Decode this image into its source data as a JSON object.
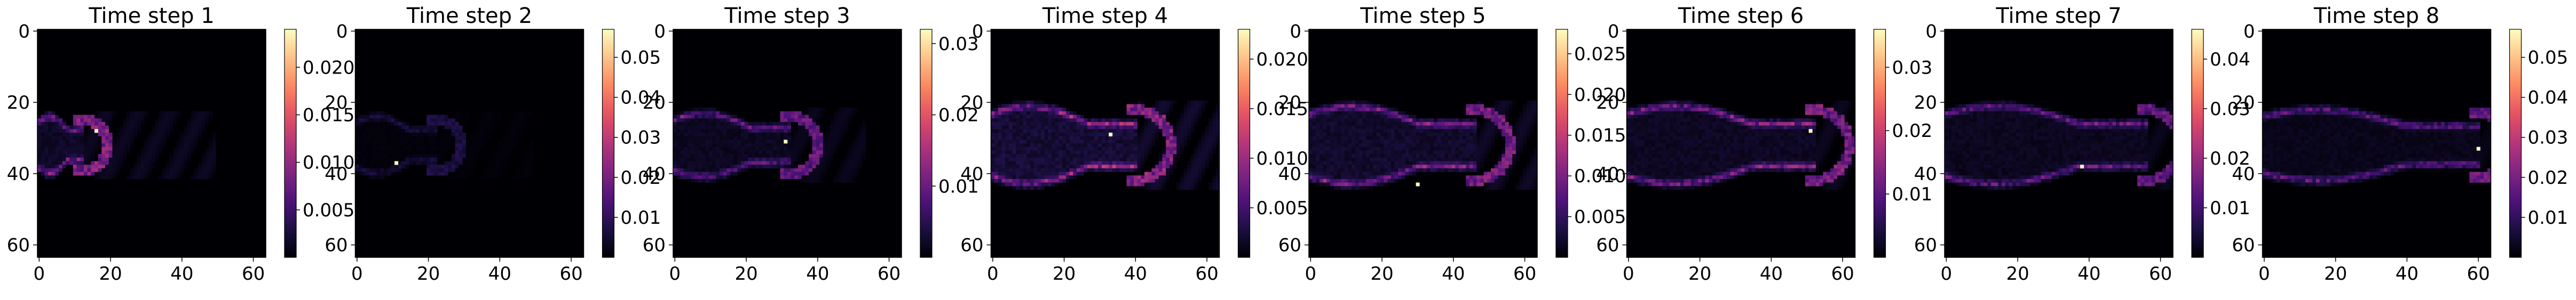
{
  "figure": {
    "background": "#ffffff",
    "colormap": "magma",
    "colormap_stops": [
      "#000004",
      "#1c1044",
      "#4f127b",
      "#812581",
      "#b5367a",
      "#e55064",
      "#fb8761",
      "#fec287",
      "#fcfdbf"
    ]
  },
  "chart_data": [
    {
      "type": "heatmap",
      "title": "Time step 1",
      "x_ticks": [
        0,
        20,
        40,
        60
      ],
      "y_ticks": [
        0,
        20,
        40,
        60
      ],
      "xlim": [
        0,
        64
      ],
      "ylim": [
        64,
        0
      ],
      "color_range": [
        0,
        0.024
      ],
      "colorbar_ticks": [
        {
          "v": 0.005,
          "label": "0.005"
        },
        {
          "v": 0.01,
          "label": "0.010"
        },
        {
          "v": 0.015,
          "label": "0.015"
        },
        {
          "v": 0.02,
          "label": "0.020"
        }
      ],
      "structure": {
        "front_x": 12,
        "tail_x": 38,
        "half_width": 8,
        "rim_value": 0.011,
        "wake_value": 0.0016,
        "peak": [
          16,
          28
        ],
        "peak_value": 0.024
      }
    },
    {
      "type": "heatmap",
      "title": "Time step 2",
      "x_ticks": [
        0,
        20,
        40,
        60
      ],
      "y_ticks": [
        0,
        20,
        40,
        60
      ],
      "xlim": [
        0,
        64
      ],
      "ylim": [
        64,
        0
      ],
      "color_range": [
        0,
        0.057
      ],
      "colorbar_ticks": [
        {
          "v": 0.01,
          "label": "0.01"
        },
        {
          "v": 0.02,
          "label": "0.02"
        },
        {
          "v": 0.03,
          "label": "0.03"
        },
        {
          "v": 0.04,
          "label": "0.04"
        },
        {
          "v": 0.05,
          "label": "0.05"
        }
      ],
      "structure": {
        "front_x": 22,
        "tail_x": 28,
        "half_width": 8,
        "rim_value": 0.009,
        "wake_value": 0.0008,
        "peak": [
          11,
          37
        ],
        "peak_value": 0.057
      }
    },
    {
      "type": "heatmap",
      "title": "Time step 3",
      "x_ticks": [
        0,
        20,
        40,
        60
      ],
      "y_ticks": [
        0,
        20,
        40,
        60
      ],
      "xlim": [
        0,
        64
      ],
      "ylim": [
        64,
        0
      ],
      "color_range": [
        0,
        0.032
      ],
      "colorbar_ticks": [
        {
          "v": 0.01,
          "label": "0.01"
        },
        {
          "v": 0.02,
          "label": "0.02"
        },
        {
          "v": 0.03,
          "label": "0.03"
        }
      ],
      "structure": {
        "front_x": 32,
        "tail_x": 22,
        "half_width": 9,
        "rim_value": 0.012,
        "wake_value": 0.0018,
        "peak": [
          31,
          31
        ],
        "peak_value": 0.032
      }
    },
    {
      "type": "heatmap",
      "title": "Time step 4",
      "x_ticks": [
        0,
        20,
        40,
        60
      ],
      "y_ticks": [
        0,
        20,
        40,
        60
      ],
      "xlim": [
        0,
        64
      ],
      "ylim": [
        64,
        0
      ],
      "color_range": [
        0,
        0.023
      ],
      "colorbar_ticks": [
        {
          "v": 0.005,
          "label": "0.005"
        },
        {
          "v": 0.01,
          "label": "0.010"
        },
        {
          "v": 0.015,
          "label": "0.015"
        },
        {
          "v": 0.02,
          "label": "0.020"
        }
      ],
      "structure": {
        "front_x": 40,
        "tail_x": 26,
        "half_width": 11,
        "rim_value": 0.011,
        "wake_value": 0.0022,
        "peak": [
          33,
          29
        ],
        "peak_value": 0.023
      }
    },
    {
      "type": "heatmap",
      "title": "Time step 5",
      "x_ticks": [
        0,
        20,
        40,
        60
      ],
      "y_ticks": [
        0,
        20,
        40,
        60
      ],
      "xlim": [
        0,
        64
      ],
      "ylim": [
        64,
        0
      ],
      "color_range": [
        0,
        0.028
      ],
      "colorbar_ticks": [
        {
          "v": 0.005,
          "label": "0.005"
        },
        {
          "v": 0.01,
          "label": "0.010"
        },
        {
          "v": 0.015,
          "label": "0.015"
        },
        {
          "v": 0.02,
          "label": "0.020"
        },
        {
          "v": 0.025,
          "label": "0.025"
        }
      ],
      "structure": {
        "front_x": 46,
        "tail_x": 26,
        "half_width": 11,
        "rim_value": 0.012,
        "wake_value": 0.0022,
        "peak": [
          30,
          43
        ],
        "peak_value": 0.028
      }
    },
    {
      "type": "heatmap",
      "title": "Time step 6",
      "x_ticks": [
        0,
        20,
        40,
        60
      ],
      "y_ticks": [
        0,
        20,
        40,
        60
      ],
      "xlim": [
        0,
        64
      ],
      "ylim": [
        64,
        0
      ],
      "color_range": [
        0,
        0.036
      ],
      "colorbar_ticks": [
        {
          "v": 0.01,
          "label": "0.01"
        },
        {
          "v": 0.02,
          "label": "0.02"
        },
        {
          "v": 0.03,
          "label": "0.03"
        }
      ],
      "structure": {
        "front_x": 52,
        "tail_x": 30,
        "half_width": 11,
        "rim_value": 0.016,
        "wake_value": 0.0022,
        "peak": [
          51,
          28
        ],
        "peak_value": 0.036
      }
    },
    {
      "type": "heatmap",
      "title": "Time step 7",
      "x_ticks": [
        0,
        20,
        40,
        60
      ],
      "y_ticks": [
        0,
        20,
        40,
        60
      ],
      "xlim": [
        0,
        64
      ],
      "ylim": [
        64,
        0
      ],
      "color_range": [
        0,
        0.046
      ],
      "colorbar_ticks": [
        {
          "v": 0.01,
          "label": "0.01"
        },
        {
          "v": 0.02,
          "label": "0.02"
        },
        {
          "v": 0.03,
          "label": "0.03"
        },
        {
          "v": 0.04,
          "label": "0.04"
        }
      ],
      "structure": {
        "front_x": 56,
        "tail_x": 34,
        "half_width": 11,
        "rim_value": 0.017,
        "wake_value": 0.0025,
        "peak": [
          38,
          38
        ],
        "peak_value": 0.046
      }
    },
    {
      "type": "heatmap",
      "title": "Time step 8",
      "x_ticks": [
        0,
        20,
        40,
        60
      ],
      "y_ticks": [
        0,
        20,
        40,
        60
      ],
      "xlim": [
        0,
        64
      ],
      "ylim": [
        64,
        0
      ],
      "color_range": [
        0,
        0.057
      ],
      "colorbar_ticks": [
        {
          "v": 0.01,
          "label": "0.01"
        },
        {
          "v": 0.02,
          "label": "0.02"
        },
        {
          "v": 0.03,
          "label": "0.03"
        },
        {
          "v": 0.04,
          "label": "0.04"
        },
        {
          "v": 0.05,
          "label": "0.05"
        }
      ],
      "structure": {
        "front_x": 60,
        "tail_x": 38,
        "half_width": 10,
        "rim_value": 0.022,
        "wake_value": 0.0025,
        "peak": [
          60,
          33
        ],
        "peak_value": 0.057
      }
    }
  ]
}
